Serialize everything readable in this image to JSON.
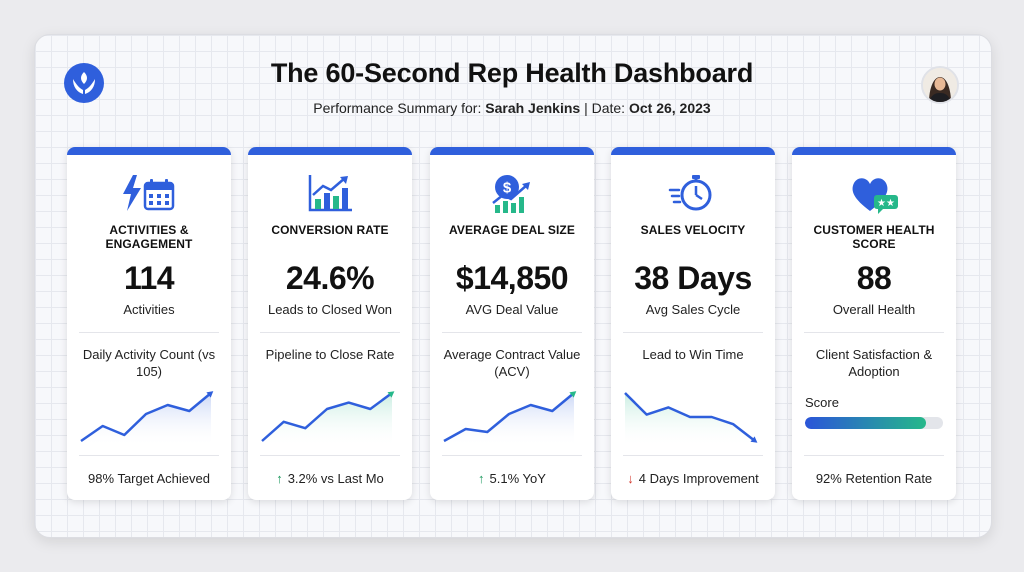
{
  "header": {
    "title": "The 60-Second Rep Health Dashboard",
    "subtitle_prefix": "Performance Summary for:",
    "rep_name": "Sarah Jenkins",
    "date_prefix": "| Date:",
    "date": "Oct 26, 2023"
  },
  "colors": {
    "accent": "#2f5fdc",
    "positive": "#1f9a60",
    "negative": "#d43a2f",
    "teal": "#26b88a"
  },
  "cards": [
    {
      "icon": "lightning-calendar-icon",
      "title": "ACTIVITIES & ENGAGEMENT",
      "metric": "114",
      "metric_label": "Activities",
      "description": "Daily Activity Count (vs 105)",
      "trend": [
        2,
        4.5,
        3,
        6.5,
        8,
        7,
        10
      ],
      "footer_arrow": "",
      "footer": "98% Target Achieved"
    },
    {
      "icon": "bar-chart-trend-icon",
      "title": "CONVERSION RATE",
      "metric": "24.6%",
      "metric_label": "Leads to Closed Won",
      "description": "Pipeline to Close Rate",
      "trend": [
        2,
        5,
        4,
        7,
        8,
        7,
        9.5
      ],
      "footer_arrow": "↑",
      "footer": "3.2% vs Last Mo"
    },
    {
      "icon": "dollar-chart-icon",
      "title": "AVERAGE DEAL SIZE",
      "metric": "$14,850",
      "metric_label": "AVG Deal Value",
      "description": "Average Contract Value (ACV)",
      "trend": [
        2,
        4,
        3.5,
        6.5,
        8,
        7,
        10
      ],
      "footer_arrow": "↑",
      "footer": "5.1% YoY"
    },
    {
      "icon": "stopwatch-icon",
      "title": "SALES VELOCITY",
      "metric": "38 Days",
      "metric_label": "Avg Sales Cycle",
      "description": "Lead to Win Time",
      "trend": [
        10,
        5.5,
        7,
        5,
        5,
        3.5,
        0
      ],
      "footer_arrow": "↓",
      "footer": "4 Days Improvement"
    },
    {
      "icon": "heart-rating-icon",
      "title": "CUSTOMER HEALTH SCORE",
      "metric": "88",
      "metric_label": "Overall Health",
      "description": "Client Satisfaction & Adoption",
      "score_label": "Score",
      "score_value": 0.88,
      "footer_arrow": "",
      "footer": "92% Retention Rate"
    }
  ]
}
